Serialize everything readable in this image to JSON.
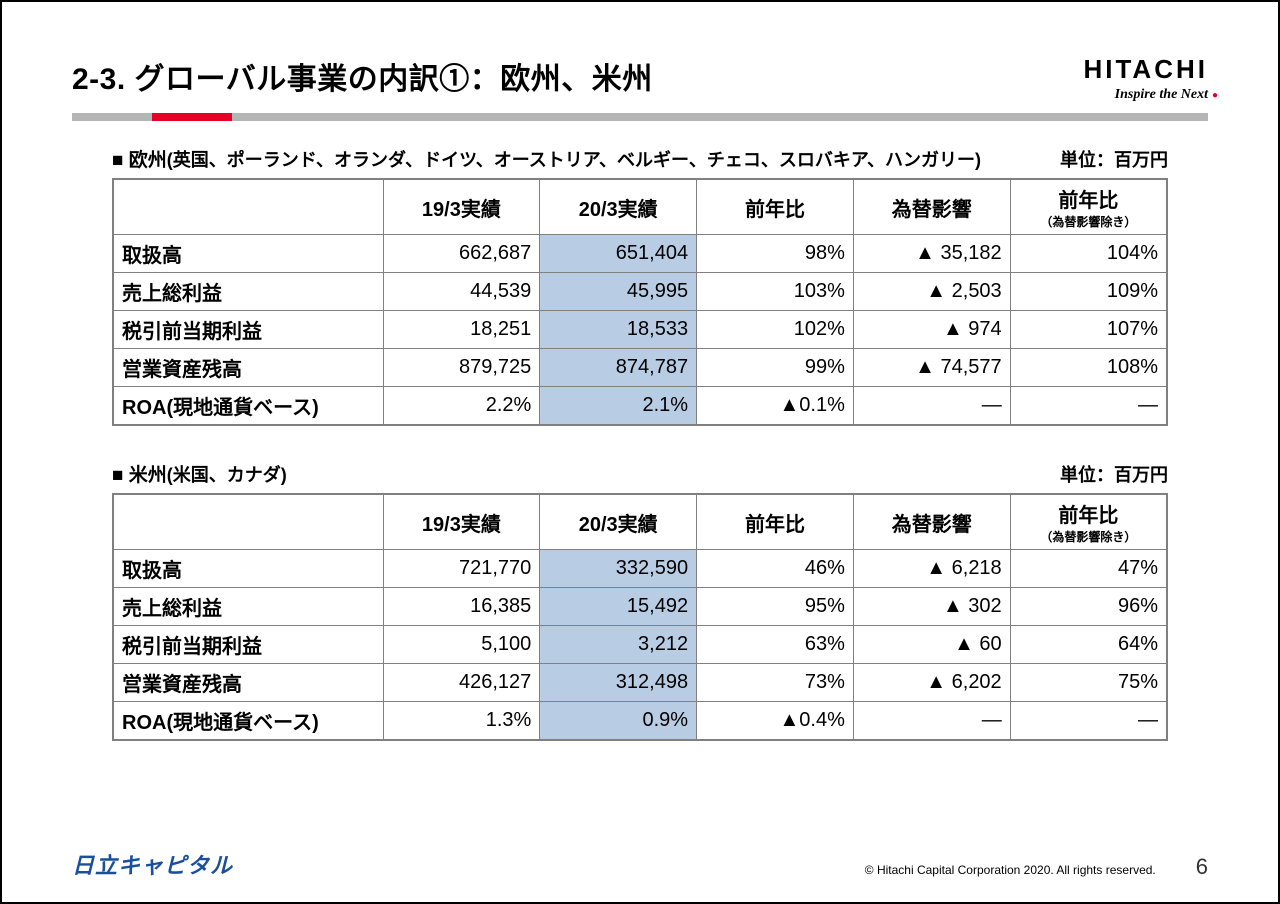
{
  "header": {
    "title": "2-3. グローバル事業の内訳①：欧州、米州",
    "brand_name": "HITACHI",
    "brand_tag": "Inspire the Next"
  },
  "unit_label": "単位：百万円",
  "columns": {
    "blank": "",
    "fy19": "19/3実績",
    "fy20": "20/3実績",
    "yoy": "前年比",
    "fx": "為替影響",
    "yoy_ex": "前年比",
    "yoy_ex_sub": "（為替影響除き）"
  },
  "tables": [
    {
      "name": "europe",
      "section_prefix": "■ 欧州",
      "countries": "(英国、ポーランド、オランダ、ドイツ、オーストリア、ベルギー、チェコ、スロバキア、ハンガリー)",
      "rows": [
        {
          "label": "取扱高",
          "fy19": "662,687",
          "fy20": "651,404",
          "yoy": "98%",
          "fx": "▲ 35,182",
          "yoy_ex": "104%"
        },
        {
          "label": "売上総利益",
          "fy19": "44,539",
          "fy20": "45,995",
          "yoy": "103%",
          "fx": "▲ 2,503",
          "yoy_ex": "109%"
        },
        {
          "label": "税引前当期利益",
          "fy19": "18,251",
          "fy20": "18,533",
          "yoy": "102%",
          "fx": "▲ 974",
          "yoy_ex": "107%"
        },
        {
          "label": "営業資産残高",
          "fy19": "879,725",
          "fy20": "874,787",
          "yoy": "99%",
          "fx": "▲ 74,577",
          "yoy_ex": "108%"
        },
        {
          "label": "ROA(現地通貨ベース)",
          "fy19": "2.2%",
          "fy20": "2.1%",
          "yoy": "▲0.1%",
          "fx": "―",
          "yoy_ex": "―"
        }
      ]
    },
    {
      "name": "americas",
      "section_prefix": "■ 米州",
      "countries": "(米国、カナダ)",
      "rows": [
        {
          "label": "取扱高",
          "fy19": "721,770",
          "fy20": "332,590",
          "yoy": "46%",
          "fx": "▲ 6,218",
          "yoy_ex": "47%"
        },
        {
          "label": "売上総利益",
          "fy19": "16,385",
          "fy20": "15,492",
          "yoy": "95%",
          "fx": "▲ 302",
          "yoy_ex": "96%"
        },
        {
          "label": "税引前当期利益",
          "fy19": "5,100",
          "fy20": "3,212",
          "yoy": "63%",
          "fx": "▲ 60",
          "yoy_ex": "64%"
        },
        {
          "label": "営業資産残高",
          "fy19": "426,127",
          "fy20": "312,498",
          "yoy": "73%",
          "fx": "▲ 6,202",
          "yoy_ex": "75%"
        },
        {
          "label": "ROA(現地通貨ベース)",
          "fy19": "1.3%",
          "fy20": "0.9%",
          "yoy": "▲0.4%",
          "fx": "―",
          "yoy_ex": "―"
        }
      ]
    }
  ],
  "footer": {
    "logo": "日立キャピタル",
    "copyright": "© Hitachi Capital Corporation  2020. All rights reserved.",
    "page": "6"
  },
  "style": {
    "highlight_bg": "#b8cce4",
    "rule_gray": "#b5b5b5",
    "rule_red": "#e60027",
    "border": "#808080",
    "footer_logo_color": "#1a4fa0"
  }
}
